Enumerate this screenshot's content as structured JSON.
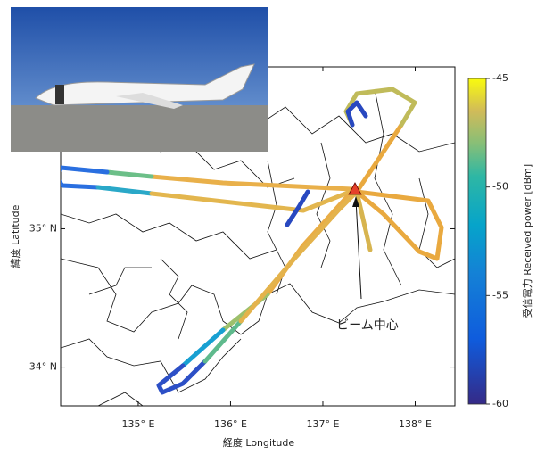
{
  "map": {
    "x_label": "経度 Longitude",
    "y_label": "緯度 Latitude",
    "xlim": [
      134.16,
      138.43
    ],
    "ylim": [
      33.72,
      36.17
    ],
    "xticks": [
      {
        "value": 135,
        "label": "135° E"
      },
      {
        "value": 136,
        "label": "136° E"
      },
      {
        "value": 137,
        "label": "137° E"
      },
      {
        "value": 138,
        "label": "138° E"
      }
    ],
    "yticks": [
      {
        "value": 34,
        "label": "34° N"
      },
      {
        "value": 35,
        "label": "35° N"
      }
    ],
    "annotation": "ビーム中心"
  },
  "colorbar": {
    "label": "受信電力 Received power [dBm]",
    "lim": [
      -60,
      -45
    ],
    "ticks": [
      -45,
      -50,
      -55,
      -60
    ]
  }
}
